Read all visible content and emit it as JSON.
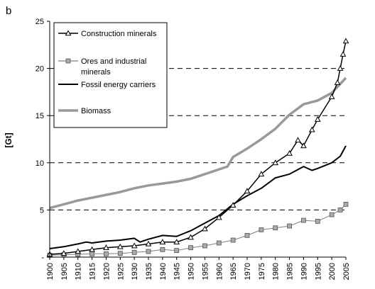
{
  "chart_data": {
    "type": "line",
    "panel_label": "b",
    "title": "",
    "xlabel": "",
    "ylabel": "[Gt]",
    "xlim": [
      1900,
      2005
    ],
    "ylim": [
      0,
      25
    ],
    "yticks": [
      0,
      5,
      10,
      15,
      20,
      25
    ],
    "ytick_labels": [
      "-",
      "5",
      "10",
      "15",
      "20",
      "25"
    ],
    "xticks": [
      1900,
      1905,
      1910,
      1915,
      1920,
      1925,
      1930,
      1935,
      1940,
      1945,
      1950,
      1955,
      1960,
      1965,
      1970,
      1975,
      1980,
      1985,
      1990,
      1995,
      2000,
      2005
    ],
    "grid": "dashed horizontal at 5, 10, 15, 20",
    "legend_position": "top-left",
    "series": [
      {
        "name": "Construction minerals",
        "color": "#000000",
        "marker": "open-triangle",
        "x": [
          1900,
          1905,
          1910,
          1915,
          1920,
          1925,
          1930,
          1935,
          1940,
          1945,
          1950,
          1955,
          1960,
          1965,
          1970,
          1975,
          1980,
          1985,
          1988,
          1990,
          1993,
          1995,
          2000,
          2002,
          2003,
          2004,
          2005
        ],
        "y": [
          0.3,
          0.4,
          0.6,
          0.8,
          1.0,
          1.1,
          1.2,
          1.4,
          1.6,
          1.6,
          2.1,
          3.0,
          4.2,
          5.5,
          7.0,
          8.8,
          10.0,
          11.0,
          12.4,
          11.8,
          13.5,
          14.6,
          17.0,
          18.5,
          20.0,
          21.5,
          22.9
        ]
      },
      {
        "name": "Ores and industrial minerals",
        "color": "#808080",
        "marker": "square",
        "x": [
          1900,
          1905,
          1910,
          1915,
          1920,
          1925,
          1930,
          1935,
          1940,
          1945,
          1950,
          1955,
          1960,
          1965,
          1970,
          1975,
          1980,
          1985,
          1990,
          1995,
          2000,
          2003,
          2005
        ],
        "y": [
          0.2,
          0.25,
          0.3,
          0.35,
          0.35,
          0.4,
          0.5,
          0.6,
          0.8,
          0.7,
          1.0,
          1.2,
          1.5,
          1.8,
          2.3,
          2.9,
          3.1,
          3.3,
          3.9,
          3.8,
          4.5,
          5.0,
          5.6
        ]
      },
      {
        "name": "Fossil energy carriers",
        "color": "#000000",
        "marker": "none",
        "x": [
          1900,
          1905,
          1910,
          1913,
          1915,
          1920,
          1925,
          1930,
          1932,
          1935,
          1940,
          1945,
          1950,
          1955,
          1960,
          1965,
          1970,
          1975,
          1980,
          1985,
          1990,
          1993,
          1995,
          2000,
          2003,
          2005
        ],
        "y": [
          0.9,
          1.1,
          1.4,
          1.6,
          1.5,
          1.7,
          1.8,
          2.0,
          1.6,
          1.9,
          2.3,
          2.2,
          2.8,
          3.6,
          4.4,
          5.6,
          6.5,
          7.3,
          8.4,
          8.8,
          9.6,
          9.2,
          9.4,
          10.0,
          10.7,
          11.8
        ]
      },
      {
        "name": "Biomass",
        "color": "#999999",
        "marker": "none",
        "x": [
          1900,
          1905,
          1910,
          1915,
          1920,
          1925,
          1930,
          1935,
          1940,
          1945,
          1950,
          1955,
          1960,
          1963,
          1965,
          1970,
          1975,
          1980,
          1985,
          1990,
          1995,
          2000,
          2005
        ],
        "y": [
          5.2,
          5.6,
          6.0,
          6.3,
          6.6,
          6.9,
          7.3,
          7.6,
          7.8,
          8.0,
          8.3,
          8.8,
          9.3,
          9.6,
          10.6,
          11.5,
          12.5,
          13.6,
          15.1,
          16.2,
          16.6,
          17.4,
          19.0
        ]
      }
    ]
  }
}
